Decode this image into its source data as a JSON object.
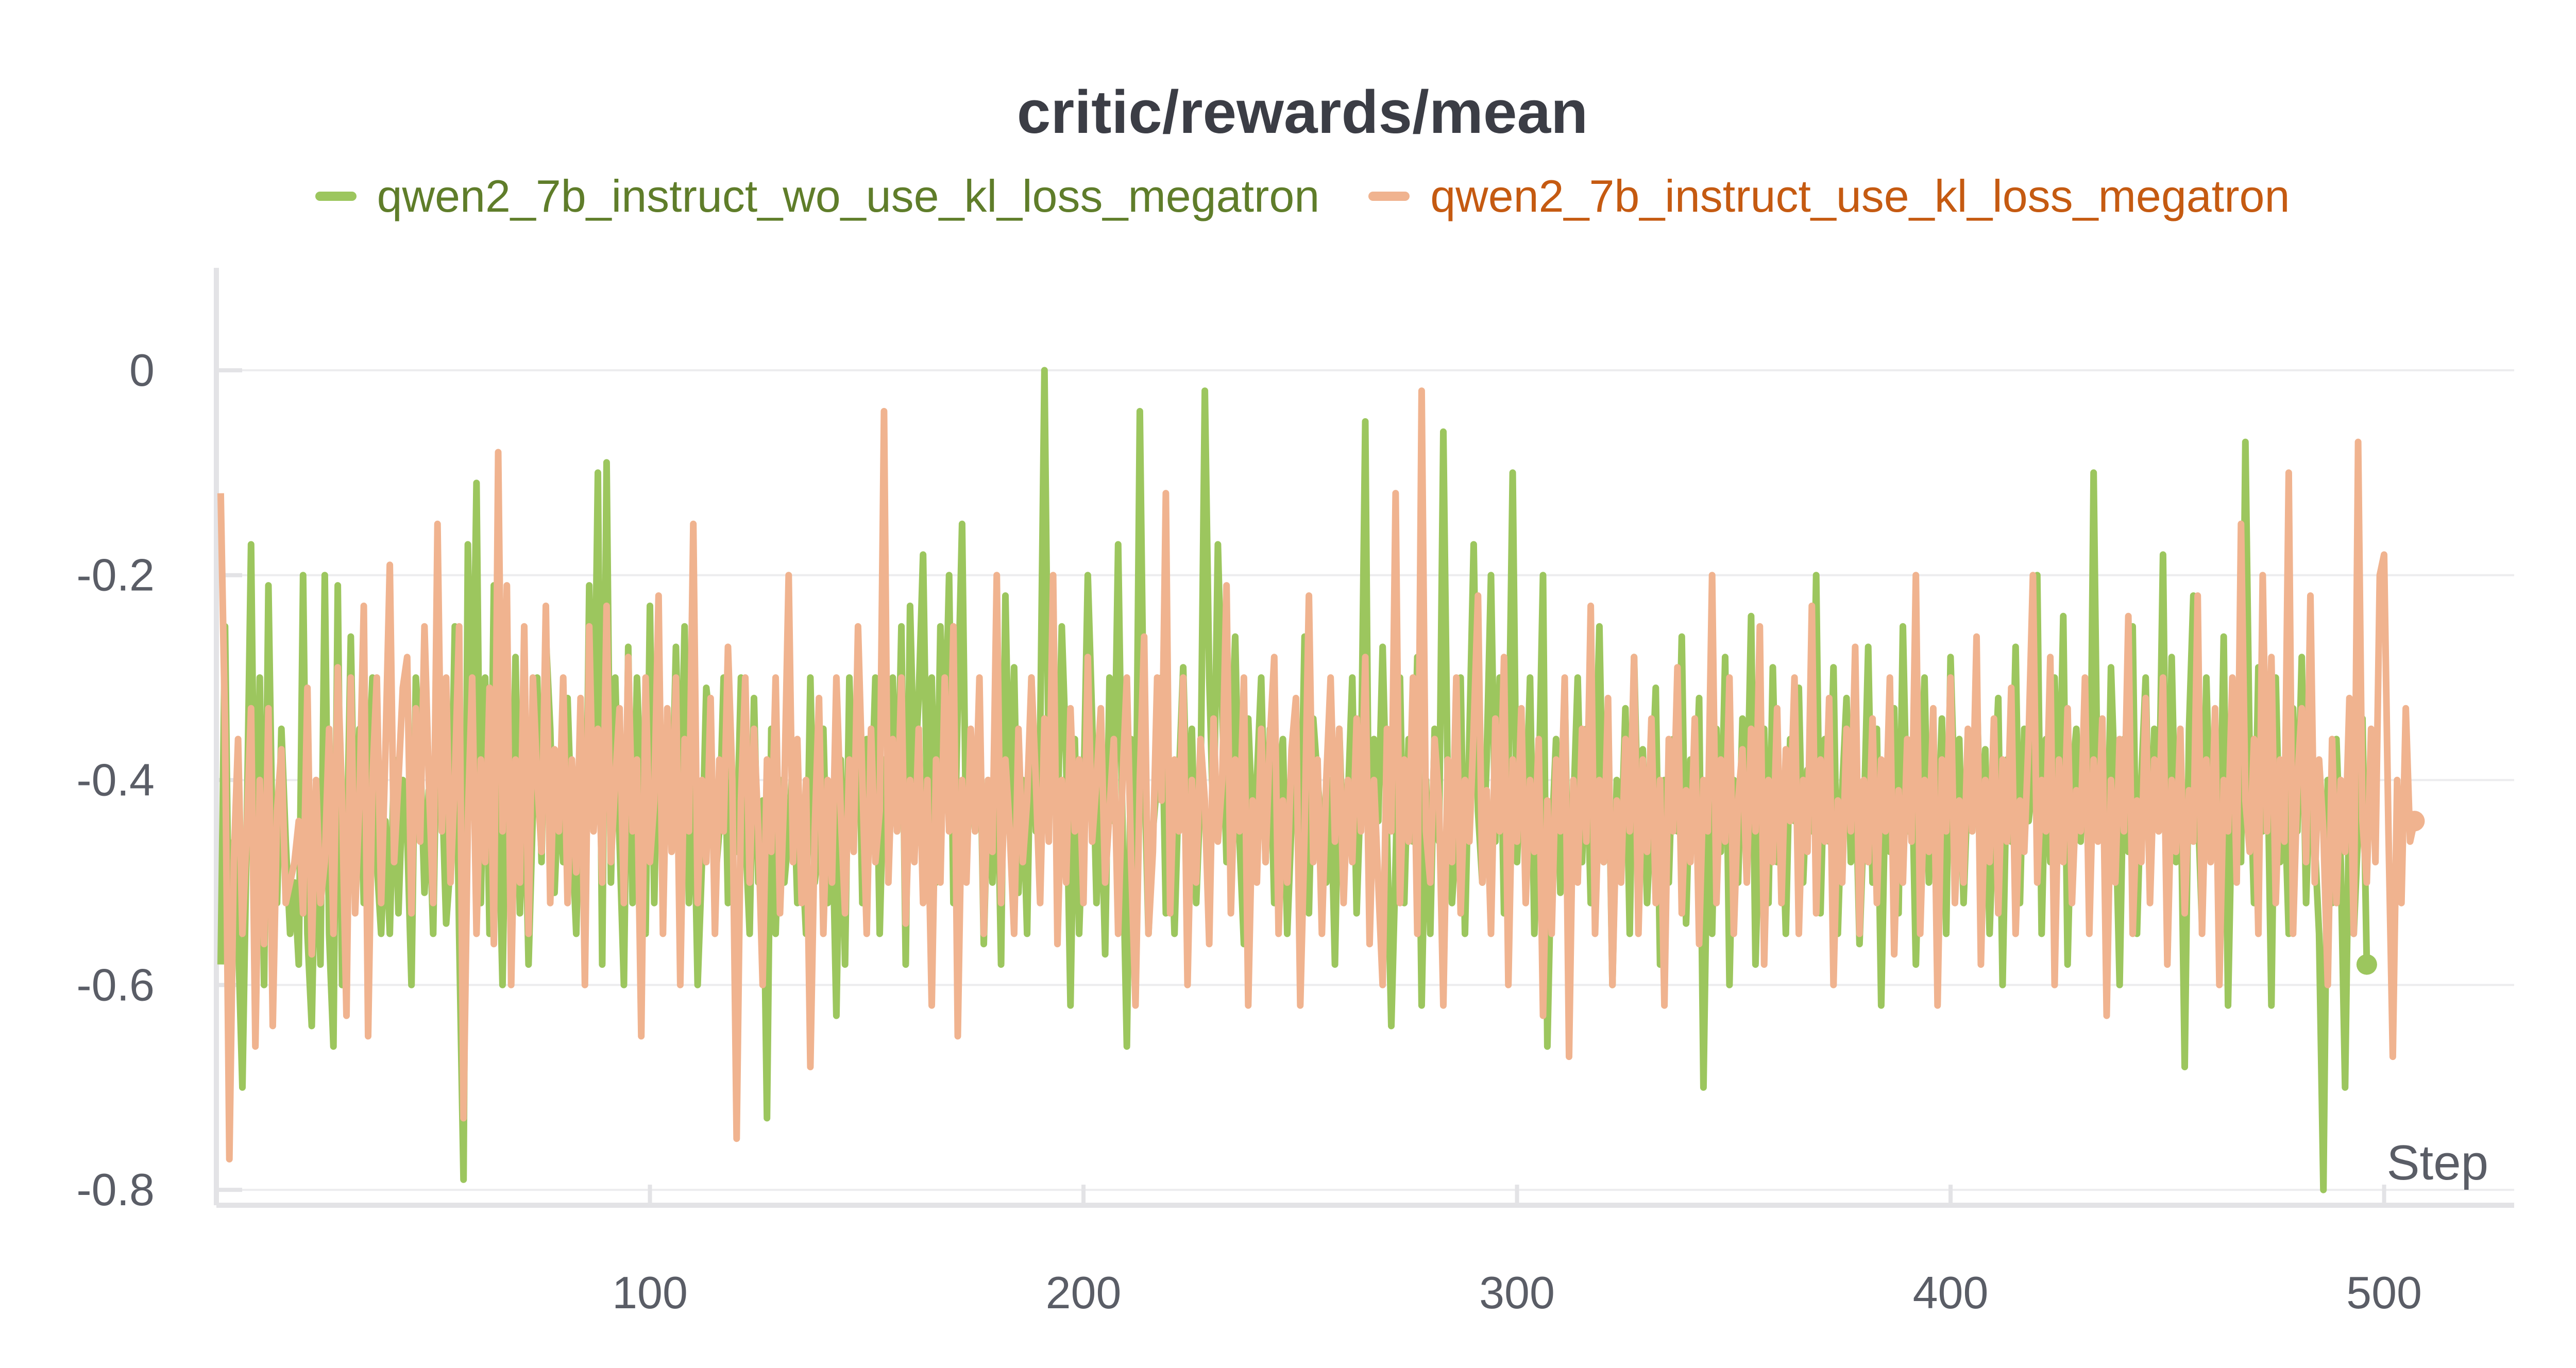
{
  "chart_data": {
    "type": "line",
    "title": "critic/rewards/mean",
    "xlabel": "Step",
    "ylabel": "",
    "xlim": [
      0,
      530
    ],
    "ylim": [
      -0.8,
      0.1
    ],
    "x_ticks": [
      100,
      200,
      300,
      400,
      500
    ],
    "y_ticks": [
      0,
      -0.2,
      -0.4,
      -0.6,
      -0.8
    ],
    "y_tick_labels": [
      "0",
      "-0.2",
      "-0.4",
      "-0.6",
      "-0.8"
    ],
    "grid": true,
    "legend_position": "top",
    "series": [
      {
        "name": "qwen2_7b_instruct_wo_use_kl_loss_megatron",
        "color": "#9cc65e",
        "label_color": "#5f7d2a",
        "x_start": 1,
        "values": [
          -0.58,
          -0.25,
          -0.6,
          -0.46,
          -0.55,
          -0.7,
          -0.45,
          -0.17,
          -0.55,
          -0.3,
          -0.6,
          -0.21,
          -0.48,
          -0.52,
          -0.35,
          -0.46,
          -0.55,
          -0.5,
          -0.58,
          -0.2,
          -0.55,
          -0.64,
          -0.42,
          -0.58,
          -0.2,
          -0.55,
          -0.66,
          -0.21,
          -0.6,
          -0.49,
          -0.26,
          -0.5,
          -0.35,
          -0.52,
          -0.4,
          -0.3,
          -0.48,
          -0.55,
          -0.44,
          -0.55,
          -0.38,
          -0.53,
          -0.4,
          -0.45,
          -0.6,
          -0.3,
          -0.37,
          -0.51,
          -0.41,
          -0.55,
          -0.3,
          -0.4,
          -0.54,
          -0.48,
          -0.25,
          -0.55,
          -0.79,
          -0.17,
          -0.4,
          -0.11,
          -0.52,
          -0.3,
          -0.55,
          -0.21,
          -0.42,
          -0.6,
          -0.34,
          -0.5,
          -0.28,
          -0.53,
          -0.38,
          -0.58,
          -0.43,
          -0.3,
          -0.48,
          -0.26,
          -0.35,
          -0.51,
          -0.4,
          -0.48,
          -0.32,
          -0.45,
          -0.55,
          -0.37,
          -0.56,
          -0.21,
          -0.42,
          -0.1,
          -0.58,
          -0.09,
          -0.5,
          -0.3,
          -0.46,
          -0.6,
          -0.27,
          -0.52,
          -0.3,
          -0.42,
          -0.55,
          -0.23,
          -0.52,
          -0.3,
          -0.48,
          -0.35,
          -0.45,
          -0.27,
          -0.45,
          -0.25,
          -0.52,
          -0.38,
          -0.6,
          -0.48,
          -0.31,
          -0.35,
          -0.5,
          -0.45,
          -0.3,
          -0.52,
          -0.4,
          -0.47,
          -0.3,
          -0.45,
          -0.55,
          -0.32,
          -0.5,
          -0.42,
          -0.73,
          -0.35,
          -0.55,
          -0.4,
          -0.5,
          -0.45,
          -0.38,
          -0.52,
          -0.46,
          -0.55,
          -0.3,
          -0.5,
          -0.46,
          -0.35,
          -0.52,
          -0.42,
          -0.63,
          -0.38,
          -0.58,
          -0.3,
          -0.45,
          -0.28,
          -0.52,
          -0.36,
          -0.44,
          -0.3,
          -0.55,
          -0.38,
          -0.46,
          -0.3,
          -0.45,
          -0.25,
          -0.58,
          -0.23,
          -0.4,
          -0.32,
          -0.18,
          -0.45,
          -0.3,
          -0.5,
          -0.25,
          -0.38,
          -0.2,
          -0.52,
          -0.33,
          -0.15,
          -0.48,
          -0.38,
          -0.45,
          -0.32,
          -0.56,
          -0.4,
          -0.5,
          -0.35,
          -0.58,
          -0.22,
          -0.45,
          -0.29,
          -0.51,
          -0.4,
          -0.55,
          -0.3,
          -0.45,
          -0.36,
          -0.0,
          -0.4,
          -0.33,
          -0.45,
          -0.25,
          -0.38,
          -0.62,
          -0.36,
          -0.55,
          -0.42,
          -0.2,
          -0.34,
          -0.52,
          -0.4,
          -0.57,
          -0.3,
          -0.44,
          -0.17,
          -0.45,
          -0.66,
          -0.36,
          -0.5,
          -0.04,
          -0.38,
          -0.55,
          -0.45,
          -0.4,
          -0.3,
          -0.53,
          -0.42,
          -0.55,
          -0.4,
          -0.29,
          -0.45,
          -0.35,
          -0.52,
          -0.41,
          -0.02,
          -0.3,
          -0.45,
          -0.17,
          -0.33,
          -0.48,
          -0.38,
          -0.26,
          -0.46,
          -0.56,
          -0.34,
          -0.45,
          -0.4,
          -0.3,
          -0.48,
          -0.35,
          -0.52,
          -0.4,
          -0.36,
          -0.55,
          -0.44,
          -0.4,
          -0.48,
          -0.26,
          -0.53,
          -0.34,
          -0.4,
          -0.45,
          -0.5,
          -0.4,
          -0.58,
          -0.35,
          -0.48,
          -0.42,
          -0.3,
          -0.53,
          -0.4,
          -0.05,
          -0.55,
          -0.36,
          -0.44,
          -0.27,
          -0.45,
          -0.64,
          -0.48,
          -0.3,
          -0.52,
          -0.36,
          -0.46,
          -0.28,
          -0.62,
          -0.4,
          -0.55,
          -0.35,
          -0.46,
          -0.06,
          -0.4,
          -0.52,
          -0.45,
          -0.3,
          -0.55,
          -0.36,
          -0.17,
          -0.43,
          -0.5,
          -0.38,
          -0.2,
          -0.46,
          -0.3,
          -0.53,
          -0.4,
          -0.1,
          -0.48,
          -0.37,
          -0.44,
          -0.3,
          -0.55,
          -0.41,
          -0.2,
          -0.66,
          -0.46,
          -0.36,
          -0.51,
          -0.31,
          -0.57,
          -0.43,
          -0.3,
          -0.48,
          -0.35,
          -0.52,
          -0.42,
          -0.25,
          -0.48,
          -0.34,
          -0.6,
          -0.4,
          -0.47,
          -0.33,
          -0.55,
          -0.28,
          -0.46,
          -0.37,
          -0.52,
          -0.42,
          -0.31,
          -0.58,
          -0.4,
          -0.5,
          -0.36,
          -0.45,
          -0.26,
          -0.54,
          -0.38,
          -0.44,
          -0.32,
          -0.7,
          -0.42,
          -0.55,
          -0.35,
          -0.47,
          -0.28,
          -0.6,
          -0.4,
          -0.5,
          -0.34,
          -0.45,
          -0.24,
          -0.58,
          -0.42,
          -0.35,
          -0.52,
          -0.29,
          -0.48,
          -0.4,
          -0.55,
          -0.36,
          -0.44,
          -0.31,
          -0.5,
          -0.39,
          -0.45,
          -0.2,
          -0.53,
          -0.36,
          -0.46,
          -0.29,
          -0.55,
          -0.41,
          -0.32,
          -0.48,
          -0.38,
          -0.56,
          -0.44,
          -0.27,
          -0.5,
          -0.35,
          -0.62,
          -0.4,
          -0.47,
          -0.33,
          -0.53,
          -0.25,
          -0.45,
          -0.37,
          -0.58,
          -0.42,
          -0.3,
          -0.5,
          -0.39,
          -0.46,
          -0.34,
          -0.55,
          -0.28,
          -0.43,
          -0.36,
          -0.52,
          -0.4,
          -0.45,
          -0.3,
          -0.48,
          -0.37,
          -0.55,
          -0.42,
          -0.32,
          -0.6,
          -0.38,
          -0.46,
          -0.27,
          -0.52,
          -0.35,
          -0.44,
          -0.4,
          -0.2,
          -0.55,
          -0.36,
          -0.48,
          -0.3,
          -0.45,
          -0.24,
          -0.58,
          -0.4,
          -0.35,
          -0.46,
          -0.31,
          -0.53,
          -0.1,
          -0.45,
          -0.38,
          -0.52,
          -0.29,
          -0.42,
          -0.6,
          -0.36,
          -0.47,
          -0.25,
          -0.55,
          -0.4,
          -0.3,
          -0.5,
          -0.35,
          -0.45,
          -0.18,
          -0.55,
          -0.28,
          -0.48,
          -0.38,
          -0.68,
          -0.35,
          -0.22,
          -0.42,
          -0.54,
          -0.3,
          -0.46,
          -0.36,
          -0.5,
          -0.26,
          -0.62,
          -0.4,
          -0.33,
          -0.48,
          -0.07,
          -0.38,
          -0.52,
          -0.29,
          -0.45,
          -0.35,
          -0.62,
          -0.3,
          -0.48,
          -0.41,
          -0.55,
          -0.33,
          -0.45,
          -0.28,
          -0.52,
          -0.38,
          -0.46,
          -0.55,
          -0.8,
          -0.4,
          -0.52,
          -0.36,
          -0.48,
          -0.7,
          -0.4,
          -0.55,
          -0.45,
          -0.34,
          -0.58
        ]
      },
      {
        "name": "qwen2_7b_instruct_use_kl_loss_megatron",
        "color": "#f0b38f",
        "label_color": "#c55a11",
        "x_start": 1,
        "values": [
          -0.12,
          -0.35,
          -0.77,
          -0.48,
          -0.36,
          -0.55,
          -0.45,
          -0.33,
          -0.66,
          -0.4,
          -0.56,
          -0.33,
          -0.64,
          -0.43,
          -0.37,
          -0.52,
          -0.5,
          -0.48,
          -0.44,
          -0.53,
          -0.31,
          -0.57,
          -0.4,
          -0.52,
          -0.48,
          -0.35,
          -0.55,
          -0.29,
          -0.42,
          -0.63,
          -0.3,
          -0.53,
          -0.42,
          -0.23,
          -0.65,
          -0.4,
          -0.3,
          -0.52,
          -0.37,
          -0.19,
          -0.48,
          -0.4,
          -0.31,
          -0.28,
          -0.53,
          -0.33,
          -0.46,
          -0.25,
          -0.4,
          -0.52,
          -0.15,
          -0.45,
          -0.3,
          -0.5,
          -0.4,
          -0.25,
          -0.73,
          -0.44,
          -0.3,
          -0.55,
          -0.38,
          -0.48,
          -0.31,
          -0.56,
          -0.08,
          -0.45,
          -0.21,
          -0.6,
          -0.38,
          -0.5,
          -0.25,
          -0.55,
          -0.3,
          -0.4,
          -0.47,
          -0.23,
          -0.52,
          -0.37,
          -0.45,
          -0.3,
          -0.52,
          -0.38,
          -0.49,
          -0.32,
          -0.6,
          -0.25,
          -0.45,
          -0.35,
          -0.5,
          -0.23,
          -0.48,
          -0.4,
          -0.33,
          -0.52,
          -0.28,
          -0.45,
          -0.38,
          -0.65,
          -0.3,
          -0.48,
          -0.42,
          -0.22,
          -0.55,
          -0.33,
          -0.47,
          -0.3,
          -0.6,
          -0.36,
          -0.45,
          -0.15,
          -0.52,
          -0.4,
          -0.48,
          -0.32,
          -0.55,
          -0.38,
          -0.45,
          -0.27,
          -0.4,
          -0.75,
          -0.42,
          -0.3,
          -0.5,
          -0.35,
          -0.45,
          -0.6,
          -0.38,
          -0.47,
          -0.3,
          -0.53,
          -0.41,
          -0.2,
          -0.48,
          -0.36,
          -0.52,
          -0.4,
          -0.68,
          -0.45,
          -0.32,
          -0.55,
          -0.4,
          -0.5,
          -0.3,
          -0.43,
          -0.53,
          -0.38,
          -0.47,
          -0.25,
          -0.4,
          -0.55,
          -0.35,
          -0.48,
          -0.43,
          -0.04,
          -0.5,
          -0.36,
          -0.45,
          -0.3,
          -0.54,
          -0.4,
          -0.48,
          -0.35,
          -0.52,
          -0.4,
          -0.62,
          -0.38,
          -0.5,
          -0.3,
          -0.45,
          -0.25,
          -0.65,
          -0.4,
          -0.5,
          -0.35,
          -0.45,
          -0.3,
          -0.55,
          -0.4,
          -0.47,
          -0.2,
          -0.52,
          -0.38,
          -0.45,
          -0.55,
          -0.35,
          -0.48,
          -0.42,
          -0.3,
          -0.4,
          -0.52,
          -0.34,
          -0.46,
          -0.2,
          -0.56,
          -0.4,
          -0.5,
          -0.33,
          -0.45,
          -0.38,
          -0.52,
          -0.28,
          -0.46,
          -0.4,
          -0.33,
          -0.5,
          -0.43,
          -0.36,
          -0.55,
          -0.4,
          -0.3,
          -0.48,
          -0.62,
          -0.4,
          -0.26,
          -0.55,
          -0.47,
          -0.3,
          -0.42,
          -0.12,
          -0.53,
          -0.38,
          -0.45,
          -0.3,
          -0.6,
          -0.4,
          -0.5,
          -0.36,
          -0.42,
          -0.56,
          -0.34,
          -0.46,
          -0.4,
          -0.21,
          -0.53,
          -0.38,
          -0.45,
          -0.3,
          -0.62,
          -0.42,
          -0.5,
          -0.35,
          -0.48,
          -0.36,
          -0.28,
          -0.55,
          -0.42,
          -0.5,
          -0.37,
          -0.32,
          -0.62,
          -0.45,
          -0.22,
          -0.48,
          -0.38,
          -0.55,
          -0.4,
          -0.3,
          -0.46,
          -0.35,
          -0.52,
          -0.4,
          -0.48,
          -0.34,
          -0.45,
          -0.28,
          -0.56,
          -0.4,
          -0.5,
          -0.6,
          -0.35,
          -0.45,
          -0.12,
          -0.52,
          -0.38,
          -0.46,
          -0.3,
          -0.55,
          -0.02,
          -0.45,
          -0.5,
          -0.36,
          -0.42,
          -0.62,
          -0.38,
          -0.48,
          -0.3,
          -0.53,
          -0.4,
          -0.46,
          -0.35,
          -0.22,
          -0.5,
          -0.41,
          -0.55,
          -0.34,
          -0.45,
          -0.28,
          -0.6,
          -0.38,
          -0.46,
          -0.33,
          -0.52,
          -0.4,
          -0.47,
          -0.36,
          -0.63,
          -0.42,
          -0.55,
          -0.38,
          -0.45,
          -0.3,
          -0.67,
          -0.4,
          -0.5,
          -0.35,
          -0.46,
          -0.23,
          -0.55,
          -0.4,
          -0.48,
          -0.32,
          -0.6,
          -0.42,
          -0.5,
          -0.36,
          -0.45,
          -0.28,
          -0.55,
          -0.38,
          -0.47,
          -0.34,
          -0.52,
          -0.4,
          -0.62,
          -0.36,
          -0.45,
          -0.29,
          -0.53,
          -0.41,
          -0.48,
          -0.34,
          -0.56,
          -0.4,
          -0.45,
          -0.2,
          -0.52,
          -0.38,
          -0.46,
          -0.3,
          -0.55,
          -0.42,
          -0.37,
          -0.5,
          -0.35,
          -0.45,
          -0.25,
          -0.58,
          -0.4,
          -0.48,
          -0.33,
          -0.52,
          -0.37,
          -0.44,
          -0.3,
          -0.55,
          -0.4,
          -0.47,
          -0.23,
          -0.53,
          -0.38,
          -0.46,
          -0.32,
          -0.6,
          -0.42,
          -0.5,
          -0.35,
          -0.45,
          -0.27,
          -0.55,
          -0.4,
          -0.48,
          -0.34,
          -0.52,
          -0.38,
          -0.45,
          -0.3,
          -0.57,
          -0.41,
          -0.5,
          -0.36,
          -0.46,
          -0.2,
          -0.55,
          -0.4,
          -0.47,
          -0.33,
          -0.62,
          -0.38,
          -0.45,
          -0.3,
          -0.52,
          -0.42,
          -0.5,
          -0.35,
          -0.45,
          -0.26,
          -0.58,
          -0.4,
          -0.48,
          -0.34,
          -0.53,
          -0.38,
          -0.46,
          -0.31,
          -0.55,
          -0.42,
          -0.47,
          -0.36,
          -0.2,
          -0.5,
          -0.4,
          -0.45,
          -0.28,
          -0.6,
          -0.38,
          -0.48,
          -0.33,
          -0.52,
          -0.41,
          -0.45,
          -0.3,
          -0.55,
          -0.38,
          -0.46,
          -0.34,
          -0.63,
          -0.4,
          -0.5,
          -0.36,
          -0.45,
          -0.24,
          -0.55,
          -0.42,
          -0.48,
          -0.32,
          -0.52,
          -0.38,
          -0.45,
          -0.3,
          -0.58,
          -0.4,
          -0.47,
          -0.35,
          -0.53,
          -0.41,
          -0.46,
          -0.22,
          -0.55,
          -0.38,
          -0.48,
          -0.33,
          -0.6,
          -0.4,
          -0.45,
          -0.3,
          -0.5,
          -0.15,
          -0.42,
          -0.47,
          -0.36,
          -0.55,
          -0.2,
          -0.45,
          -0.28,
          -0.52,
          -0.38,
          -0.46,
          -0.1,
          -0.55,
          -0.4,
          -0.33,
          -0.48,
          -0.22,
          -0.5,
          -0.38,
          -0.45,
          -0.6,
          -0.36,
          -0.52,
          -0.4,
          -0.47,
          -0.32,
          -0.55,
          -0.07,
          -0.44,
          -0.5,
          -0.35,
          -0.48,
          -0.2,
          -0.18,
          -0.45,
          -0.67,
          -0.4,
          -0.52,
          -0.33,
          -0.46,
          -0.44
        ]
      }
    ]
  }
}
